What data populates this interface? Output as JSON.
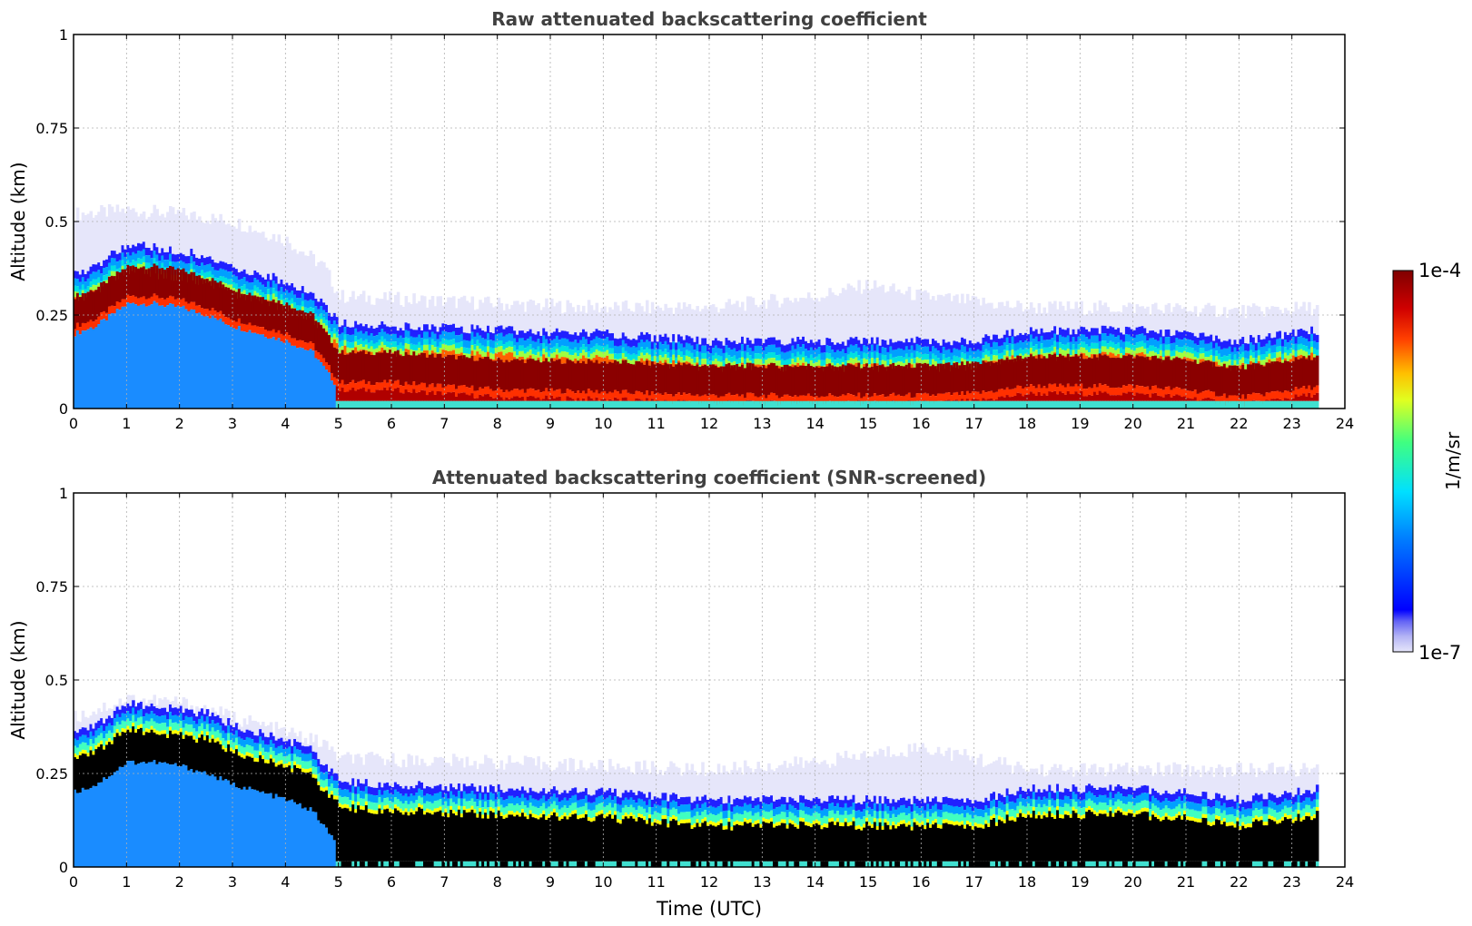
{
  "chart_data": [
    {
      "type": "heatmap",
      "id": "raw",
      "title": "Raw attenuated backscattering coefficient",
      "xlabel": "",
      "ylabel": "Altitude (km)",
      "xlim": [
        0,
        24
      ],
      "ylim": [
        0,
        1
      ],
      "x_ticks": [
        "0",
        "1",
        "2",
        "3",
        "4",
        "5",
        "6",
        "7",
        "8",
        "9",
        "10",
        "11",
        "12",
        "13",
        "14",
        "15",
        "16",
        "17",
        "18",
        "19",
        "20",
        "21",
        "22",
        "23",
        "24"
      ],
      "y_ticks": [
        "0",
        "0.25",
        "0.5",
        "0.75",
        "1"
      ],
      "data_end_time": 23.5,
      "noise_cap_altitude_km": {
        "t": [
          0,
          1,
          2,
          3,
          4,
          4.7,
          5,
          8,
          10,
          12,
          14,
          15,
          16,
          18,
          20,
          22,
          23.5
        ],
        "z": [
          0.52,
          0.53,
          0.52,
          0.5,
          0.45,
          0.38,
          0.3,
          0.28,
          0.27,
          0.27,
          0.3,
          0.33,
          0.3,
          0.27,
          0.27,
          0.26,
          0.27
        ]
      },
      "layer_top_km": {
        "t": [
          0,
          0.4,
          1,
          1.5,
          2,
          2.5,
          3,
          3.5,
          4,
          4.5,
          5,
          6,
          8,
          10,
          11,
          12,
          14,
          16,
          17,
          18,
          20,
          21,
          22,
          23.5
        ],
        "z": [
          0.36,
          0.38,
          0.44,
          0.43,
          0.42,
          0.41,
          0.38,
          0.36,
          0.34,
          0.31,
          0.23,
          0.22,
          0.21,
          0.2,
          0.19,
          0.18,
          0.18,
          0.18,
          0.18,
          0.21,
          0.21,
          0.2,
          0.18,
          0.21
        ]
      },
      "peak_center_km": {
        "t": [
          0,
          0.4,
          1,
          1.5,
          2,
          2.5,
          3,
          3.5,
          4,
          4.5,
          5,
          6,
          8,
          10,
          11,
          12,
          14,
          16,
          17,
          18,
          20,
          21,
          22,
          23.5
        ],
        "z": [
          0.26,
          0.28,
          0.34,
          0.34,
          0.33,
          0.31,
          0.28,
          0.26,
          0.24,
          0.21,
          0.11,
          0.11,
          0.09,
          0.085,
          0.08,
          0.075,
          0.075,
          0.075,
          0.08,
          0.1,
          0.1,
          0.09,
          0.07,
          0.1
        ]
      },
      "below_peak_class": "low"
    },
    {
      "type": "heatmap",
      "id": "snr",
      "title": "Attenuated backscattering coefficient (SNR-screened)",
      "xlabel": "Time (UTC)",
      "ylabel": "Altitude (km)",
      "xlim": [
        0,
        24
      ],
      "ylim": [
        0,
        1
      ],
      "x_ticks": [
        "0",
        "1",
        "2",
        "3",
        "4",
        "5",
        "6",
        "7",
        "8",
        "9",
        "10",
        "11",
        "12",
        "13",
        "14",
        "15",
        "16",
        "17",
        "18",
        "19",
        "20",
        "21",
        "22",
        "23",
        "24"
      ],
      "y_ticks": [
        "0",
        "0.25",
        "0.5",
        "0.75",
        "1"
      ],
      "data_end_time": 23.5,
      "noise_cap_altitude_km": {
        "t": [
          0,
          1,
          2,
          3,
          4,
          4.7,
          5,
          8,
          10,
          12,
          14,
          15,
          16,
          18,
          20,
          22,
          23.5
        ],
        "z": [
          0.4,
          0.45,
          0.44,
          0.4,
          0.36,
          0.33,
          0.29,
          0.28,
          0.27,
          0.26,
          0.28,
          0.3,
          0.32,
          0.26,
          0.26,
          0.26,
          0.26
        ]
      },
      "layer_top_km": {
        "t": [
          0,
          0.4,
          1,
          1.5,
          2,
          2.5,
          3,
          3.5,
          4,
          4.5,
          5,
          6,
          8,
          10,
          11,
          12,
          14,
          16,
          17,
          18,
          20,
          21,
          22,
          23.5
        ],
        "z": [
          0.36,
          0.38,
          0.44,
          0.43,
          0.42,
          0.41,
          0.38,
          0.36,
          0.34,
          0.31,
          0.23,
          0.22,
          0.21,
          0.2,
          0.19,
          0.18,
          0.18,
          0.18,
          0.18,
          0.21,
          0.21,
          0.2,
          0.18,
          0.21
        ]
      },
      "peak_center_km": {
        "t": [
          0,
          0.4,
          1,
          1.5,
          2,
          2.5,
          3,
          3.5,
          4,
          4.5,
          5,
          6,
          8,
          10,
          11,
          12,
          14,
          16,
          17,
          18,
          20,
          21,
          22,
          23.5
        ],
        "z": [
          0.26,
          0.28,
          0.34,
          0.34,
          0.33,
          0.31,
          0.28,
          0.26,
          0.24,
          0.21,
          0.11,
          0.11,
          0.09,
          0.085,
          0.08,
          0.075,
          0.075,
          0.075,
          0.08,
          0.1,
          0.1,
          0.09,
          0.07,
          0.1
        ]
      },
      "saturated_color": "#000000",
      "below_peak_class": "low"
    }
  ],
  "colorbar": {
    "label": "1/m/sr",
    "max_label": "1e-4",
    "min_label": "1e-7",
    "colormap": "jet",
    "low_colors": [
      "#e6e6fa",
      "#c8c8f5",
      "#a0a0f0",
      "#6464f0",
      "#3232f5"
    ]
  }
}
